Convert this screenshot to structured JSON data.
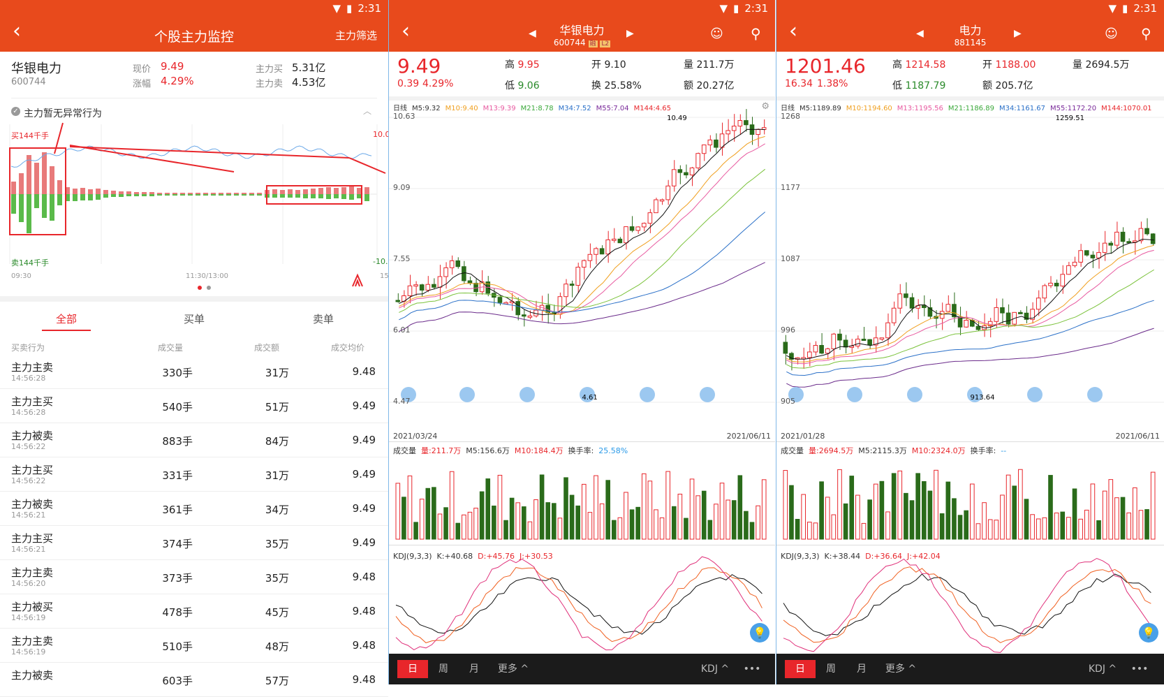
{
  "status": {
    "time": "2:31"
  },
  "p1": {
    "title": "个股主力监控",
    "filter_btn": "主力筛选",
    "stock_name": "华银电力",
    "stock_code": "600744",
    "price_label": "现价",
    "price": "9.49",
    "change_label": "涨幅",
    "change": "4.29%",
    "buy_label": "主力买",
    "buy": "5.31亿",
    "sell_label": "主力卖",
    "sell": "4.53亿",
    "notice": "主力暂无异常行为",
    "chart_tl": "买144千手",
    "chart_bl": "卖144千手",
    "chart_tr": "10.0",
    "chart_br": "-10.0",
    "t_start": "09:30",
    "t_mid": "11:30/13:00",
    "t_end": "15",
    "tabs": [
      "全部",
      "买单",
      "卖单"
    ],
    "cols": [
      "买卖行为",
      "成交量",
      "成交额",
      "成交均价"
    ],
    "rows": [
      {
        "a": "主力主卖",
        "t": "14:56:28",
        "v": "330手",
        "m": "31万",
        "p": "9.48"
      },
      {
        "a": "主力主买",
        "t": "14:56:28",
        "v": "540手",
        "m": "51万",
        "p": "9.49"
      },
      {
        "a": "主力被卖",
        "t": "14:56:22",
        "v": "883手",
        "m": "84万",
        "p": "9.49"
      },
      {
        "a": "主力主买",
        "t": "14:56:22",
        "v": "331手",
        "m": "31万",
        "p": "9.49"
      },
      {
        "a": "主力被卖",
        "t": "14:56:21",
        "v": "361手",
        "m": "34万",
        "p": "9.49"
      },
      {
        "a": "主力主买",
        "t": "14:56:21",
        "v": "374手",
        "m": "35万",
        "p": "9.49"
      },
      {
        "a": "主力主卖",
        "t": "14:56:20",
        "v": "373手",
        "m": "35万",
        "p": "9.48"
      },
      {
        "a": "主力被买",
        "t": "14:56:19",
        "v": "478手",
        "m": "45万",
        "p": "9.48"
      },
      {
        "a": "主力主卖",
        "t": "14:56:19",
        "v": "510手",
        "m": "48万",
        "p": "9.48"
      },
      {
        "a": "主力被卖",
        "t": "",
        "v": "603手",
        "m": "57万",
        "p": "9.48"
      }
    ]
  },
  "p2": {
    "title": "华银电力",
    "code": "600744",
    "badge1": "融",
    "badge2": "L2",
    "price": "9.49",
    "chg": "0.39",
    "pct": "4.29%",
    "hi_l": "高",
    "hi": "9.95",
    "lo_l": "低",
    "lo": "9.06",
    "op_l": "开",
    "op": "9.10",
    "tr_l": "换",
    "tr": "25.58%",
    "vol_l": "量",
    "vol": "211.7万",
    "amt_l": "额",
    "amt": "20.27亿",
    "ma": [
      "日线",
      "M5:9.32",
      "M10:9.40",
      "M13:9.39",
      "M21:8.78",
      "M34:7.52",
      "M55:7.04",
      "M144:4.65"
    ],
    "yt": [
      "10.63",
      "9.09",
      "7.55",
      "6.01",
      "4.47"
    ],
    "hi_mark": "10.49",
    "lo_mark": "4.61",
    "d0": "2021/03/24",
    "d1": "2021/06/11",
    "vol_row": [
      "成交量",
      "量:211.7万",
      "M5:156.6万",
      "M10:184.4万",
      "换手率:",
      "25.58%"
    ],
    "kdj": [
      "KDJ(9,3,3)",
      "K:+40.68",
      "D:+45.76",
      "J:+30.53"
    ],
    "btns": [
      "日",
      "周",
      "月",
      "更多 ^",
      "KDJ ^",
      "•••"
    ]
  },
  "p3": {
    "title": "电力",
    "code": "881145",
    "price": "1201.46",
    "chg": "16.34",
    "pct": "1.38%",
    "hi_l": "高",
    "hi": "1214.58",
    "lo_l": "低",
    "lo": "1187.79",
    "op_l": "开",
    "op": "1188.00",
    "vol_l": "量",
    "vol": "2694.5万",
    "amt_l": "额",
    "amt": "205.7亿",
    "ma": [
      "日线",
      "M5:1189.89",
      "M10:1194.60",
      "M13:1195.56",
      "M21:1186.89",
      "M34:1161.67",
      "M55:1172.20",
      "M144:1070.01"
    ],
    "yt": [
      "1268",
      "1177",
      "1087",
      "996",
      "905"
    ],
    "hi_mark": "1259.51",
    "lo_mark": "913.64",
    "d0": "2021/01/28",
    "d1": "2021/06/11",
    "vol_row": [
      "成交量",
      "量:2694.5万",
      "M5:2115.3万",
      "M10:2324.0万",
      "换手率:",
      "--"
    ],
    "kdj": [
      "KDJ(9,3,3)",
      "K:+38.44",
      "D:+36.64",
      "J:+42.04"
    ],
    "btns": [
      "日",
      "周",
      "月",
      "更多 ^",
      "KDJ ^",
      "•••"
    ]
  },
  "colors": {
    "header": "#e84a1c",
    "up": "#e8262b",
    "down": "#2a6b1a"
  }
}
